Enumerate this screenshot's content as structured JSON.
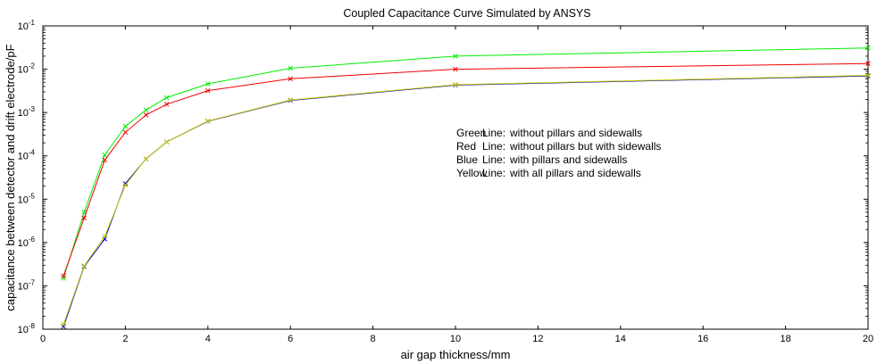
{
  "chart_data": {
    "type": "line",
    "title": "Coupled Capacitance Curve Simulated by ANSYS",
    "xlabel": "air gap thickness/mm",
    "ylabel": "capacitance between detector and drift electrode/pF",
    "xlim": [
      0,
      20
    ],
    "ylim": [
      1e-08,
      0.1
    ],
    "yscale": "log",
    "grid": false,
    "x_ticks": [
      0,
      2,
      4,
      6,
      8,
      10,
      12,
      14,
      16,
      18,
      20
    ],
    "y_ticks": [
      {
        "value": 1e-08,
        "base": "10",
        "exp": "-8"
      },
      {
        "value": 1e-07,
        "base": "10",
        "exp": "-7"
      },
      {
        "value": 1e-06,
        "base": "10",
        "exp": "-6"
      },
      {
        "value": 1e-05,
        "base": "10",
        "exp": "-5"
      },
      {
        "value": 0.0001,
        "base": "10",
        "exp": "-4"
      },
      {
        "value": 0.001,
        "base": "10",
        "exp": "-3"
      },
      {
        "value": 0.01,
        "base": "10",
        "exp": "-2"
      },
      {
        "value": 0.1,
        "base": "10",
        "exp": "-1"
      }
    ],
    "legend_placement": "center-right, inside plot",
    "legend": [
      {
        "color_word": "Green",
        "word": "Line:",
        "text": "without pillars and sidewalls"
      },
      {
        "color_word": "Red",
        "word": "Line:",
        "text": "without pillars but with sidewalls"
      },
      {
        "color_word": "Blue",
        "word": "Line:",
        "text": "with pillars and sidewalls"
      },
      {
        "color_word": "Yellow",
        "word": "Line:",
        "text": "with all pillars and sidewalls"
      }
    ],
    "series": [
      {
        "color": "#00ee00",
        "x": [
          0.5,
          1,
          1.5,
          2,
          2.5,
          3,
          4,
          6,
          10,
          20
        ],
        "y": [
          1.5e-07,
          5e-06,
          0.000105,
          0.00048,
          0.00115,
          0.0022,
          0.0046,
          0.0105,
          0.02,
          0.031
        ]
      },
      {
        "color": "#ee0000",
        "x": [
          0.5,
          1,
          1.5,
          2,
          2.5,
          3,
          4,
          6,
          10,
          20
        ],
        "y": [
          1.7e-07,
          3.7e-06,
          8e-05,
          0.00035,
          0.00088,
          0.00155,
          0.0032,
          0.006,
          0.01,
          0.0135
        ]
      },
      {
        "color": "#0000cc",
        "x": [
          0.5,
          1,
          1.5,
          2,
          2.5,
          3,
          4,
          6,
          10,
          20
        ],
        "y": [
          1.15e-08,
          2.8e-07,
          1.2e-06,
          2.3e-05,
          8.5e-05,
          0.00021,
          0.00063,
          0.0019,
          0.0043,
          0.007
        ]
      },
      {
        "color": "#cccc00",
        "x": [
          0.5,
          1,
          1.5,
          2,
          2.5,
          3,
          4,
          6,
          10,
          20
        ],
        "y": [
          1.3e-08,
          2.9e-07,
          1.4e-06,
          2.1e-05,
          8.6e-05,
          0.00021,
          0.00064,
          0.00195,
          0.0044,
          0.0072
        ]
      }
    ]
  }
}
